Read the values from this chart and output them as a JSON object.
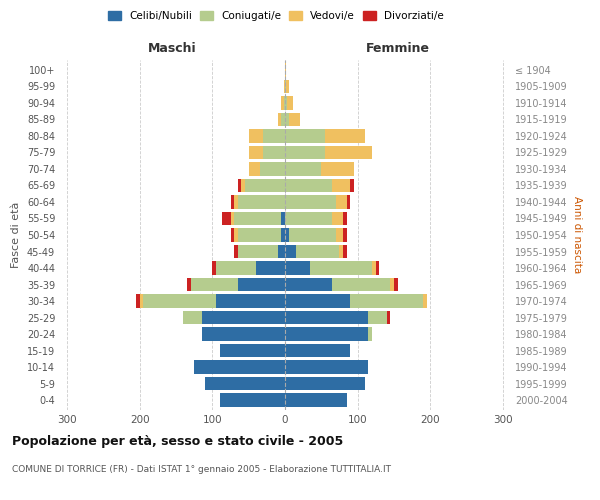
{
  "age_groups": [
    "100+",
    "95-99",
    "90-94",
    "85-89",
    "80-84",
    "75-79",
    "70-74",
    "65-69",
    "60-64",
    "55-59",
    "50-54",
    "45-49",
    "40-44",
    "35-39",
    "30-34",
    "25-29",
    "20-24",
    "15-19",
    "10-14",
    "5-9",
    "0-4"
  ],
  "birth_years": [
    "≤ 1904",
    "1905-1909",
    "1910-1914",
    "1915-1919",
    "1920-1924",
    "1925-1929",
    "1930-1934",
    "1935-1939",
    "1940-1944",
    "1945-1949",
    "1950-1954",
    "1955-1959",
    "1960-1964",
    "1965-1969",
    "1970-1974",
    "1975-1979",
    "1980-1984",
    "1985-1989",
    "1990-1994",
    "1995-1999",
    "2000-2004"
  ],
  "males": {
    "celibi": [
      0,
      0,
      0,
      0,
      0,
      0,
      0,
      0,
      0,
      5,
      5,
      10,
      40,
      65,
      95,
      115,
      115,
      90,
      125,
      110,
      90
    ],
    "coniugati": [
      0,
      0,
      2,
      5,
      30,
      30,
      35,
      55,
      65,
      65,
      60,
      55,
      55,
      65,
      100,
      25,
      0,
      0,
      0,
      0,
      0
    ],
    "vedovi": [
      0,
      2,
      3,
      5,
      20,
      20,
      15,
      5,
      5,
      5,
      5,
      0,
      0,
      0,
      5,
      0,
      0,
      0,
      0,
      0,
      0
    ],
    "divorziati": [
      0,
      0,
      0,
      0,
      0,
      0,
      0,
      5,
      5,
      12,
      5,
      5,
      5,
      5,
      5,
      0,
      0,
      0,
      0,
      0,
      0
    ]
  },
  "females": {
    "nubili": [
      0,
      0,
      0,
      0,
      0,
      0,
      0,
      0,
      0,
      0,
      5,
      15,
      35,
      65,
      90,
      115,
      115,
      90,
      115,
      110,
      85
    ],
    "coniugate": [
      0,
      2,
      3,
      5,
      55,
      55,
      50,
      65,
      70,
      65,
      65,
      60,
      85,
      80,
      100,
      25,
      5,
      0,
      0,
      0,
      0
    ],
    "vedove": [
      2,
      3,
      8,
      15,
      55,
      65,
      45,
      25,
      15,
      15,
      10,
      5,
      5,
      5,
      5,
      0,
      0,
      0,
      0,
      0,
      0
    ],
    "divorziate": [
      0,
      0,
      0,
      0,
      0,
      0,
      0,
      5,
      5,
      5,
      5,
      5,
      5,
      5,
      0,
      5,
      0,
      0,
      0,
      0,
      0
    ]
  },
  "colors": {
    "celibi_nubili": "#2e6da4",
    "coniugati": "#b5cc8e",
    "vedovi": "#f0c060",
    "divorziati": "#cc2222"
  },
  "xlim": 310,
  "title": "Popolazione per età, sesso e stato civile - 2005",
  "subtitle": "COMUNE DI TORRICE (FR) - Dati ISTAT 1° gennaio 2005 - Elaborazione TUTTITALIA.IT",
  "ylabel_left": "Fasce di età",
  "ylabel_right": "Anni di nascita",
  "xlabel_maschi": "Maschi",
  "xlabel_femmine": "Femmine",
  "bg_color": "#ffffff",
  "grid_color": "#cccccc",
  "bar_height": 0.8
}
